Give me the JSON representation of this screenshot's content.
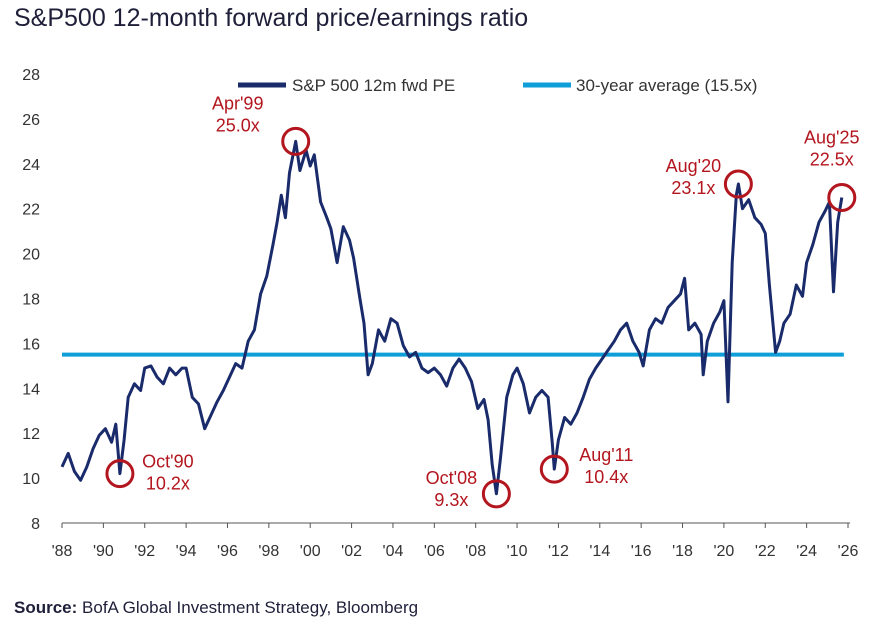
{
  "title": "S&P500 12-month forward price/earnings ratio",
  "source": {
    "label": "Source:",
    "text": " BofA Global Investment Strategy, Bloomberg"
  },
  "colors": {
    "pe_line": "#1a2b6b",
    "average_line": "#0e9fd8",
    "annotation": "#b3161e"
  },
  "chart_data": {
    "type": "line",
    "title": "S&P500 12-month forward price/earnings ratio",
    "xlabel": "",
    "ylabel": "",
    "xlim": [
      1988,
      2026
    ],
    "ylim": [
      8,
      28
    ],
    "y_ticks": [
      8,
      10,
      12,
      14,
      16,
      18,
      20,
      22,
      24,
      26,
      28
    ],
    "x_ticks": [
      {
        "value": 1988,
        "label": "'88"
      },
      {
        "value": 1990,
        "label": "'90"
      },
      {
        "value": 1992,
        "label": "'92"
      },
      {
        "value": 1994,
        "label": "'94"
      },
      {
        "value": 1996,
        "label": "'96"
      },
      {
        "value": 1998,
        "label": "'98"
      },
      {
        "value": 2000,
        "label": "'00"
      },
      {
        "value": 2002,
        "label": "'02"
      },
      {
        "value": 2004,
        "label": "'04"
      },
      {
        "value": 2006,
        "label": "'06"
      },
      {
        "value": 2008,
        "label": "'08"
      },
      {
        "value": 2010,
        "label": "'10"
      },
      {
        "value": 2012,
        "label": "'12"
      },
      {
        "value": 2014,
        "label": "'14"
      },
      {
        "value": 2016,
        "label": "'16"
      },
      {
        "value": 2018,
        "label": "'18"
      },
      {
        "value": 2020,
        "label": "'20"
      },
      {
        "value": 2022,
        "label": "'22"
      },
      {
        "value": 2024,
        "label": "'24"
      },
      {
        "value": 2026,
        "label": "'26"
      }
    ],
    "legend_position": "top",
    "series": [
      {
        "name": "S&P 500 12m fwd PE",
        "points": [
          [
            1988.0,
            10.5
          ],
          [
            1988.3,
            11.1
          ],
          [
            1988.6,
            10.3
          ],
          [
            1988.9,
            9.9
          ],
          [
            1989.2,
            10.5
          ],
          [
            1989.5,
            11.3
          ],
          [
            1989.8,
            11.9
          ],
          [
            1990.1,
            12.2
          ],
          [
            1990.4,
            11.6
          ],
          [
            1990.6,
            12.4
          ],
          [
            1990.8,
            10.2
          ],
          [
            1991.0,
            11.7
          ],
          [
            1991.2,
            13.6
          ],
          [
            1991.5,
            14.2
          ],
          [
            1991.8,
            13.9
          ],
          [
            1992.0,
            14.9
          ],
          [
            1992.3,
            15.0
          ],
          [
            1992.6,
            14.5
          ],
          [
            1992.9,
            14.2
          ],
          [
            1993.2,
            14.9
          ],
          [
            1993.5,
            14.6
          ],
          [
            1993.8,
            14.9
          ],
          [
            1994.0,
            14.9
          ],
          [
            1994.3,
            13.6
          ],
          [
            1994.6,
            13.3
          ],
          [
            1994.9,
            12.2
          ],
          [
            1995.2,
            12.8
          ],
          [
            1995.5,
            13.4
          ],
          [
            1995.8,
            13.9
          ],
          [
            1996.1,
            14.5
          ],
          [
            1996.4,
            15.1
          ],
          [
            1996.7,
            14.9
          ],
          [
            1997.0,
            16.1
          ],
          [
            1997.3,
            16.6
          ],
          [
            1997.6,
            18.2
          ],
          [
            1997.9,
            19.0
          ],
          [
            1998.2,
            20.4
          ],
          [
            1998.4,
            21.4
          ],
          [
            1998.6,
            22.6
          ],
          [
            1998.8,
            21.6
          ],
          [
            1999.0,
            23.6
          ],
          [
            1999.3,
            25.0
          ],
          [
            1999.5,
            23.7
          ],
          [
            1999.8,
            24.6
          ],
          [
            2000.0,
            23.9
          ],
          [
            2000.2,
            24.4
          ],
          [
            2000.5,
            22.3
          ],
          [
            2000.8,
            21.6
          ],
          [
            2001.0,
            21.1
          ],
          [
            2001.3,
            19.6
          ],
          [
            2001.6,
            21.2
          ],
          [
            2001.9,
            20.6
          ],
          [
            2002.1,
            19.8
          ],
          [
            2002.4,
            18.0
          ],
          [
            2002.6,
            16.9
          ],
          [
            2002.8,
            14.6
          ],
          [
            2003.0,
            15.1
          ],
          [
            2003.3,
            16.6
          ],
          [
            2003.6,
            16.1
          ],
          [
            2003.9,
            17.1
          ],
          [
            2004.2,
            16.9
          ],
          [
            2004.5,
            15.9
          ],
          [
            2004.8,
            15.4
          ],
          [
            2005.1,
            15.6
          ],
          [
            2005.4,
            14.9
          ],
          [
            2005.7,
            14.7
          ],
          [
            2006.0,
            14.9
          ],
          [
            2006.3,
            14.6
          ],
          [
            2006.6,
            14.1
          ],
          [
            2006.9,
            14.9
          ],
          [
            2007.2,
            15.3
          ],
          [
            2007.5,
            14.9
          ],
          [
            2007.8,
            14.3
          ],
          [
            2008.1,
            13.1
          ],
          [
            2008.4,
            13.5
          ],
          [
            2008.6,
            12.6
          ],
          [
            2008.8,
            10.6
          ],
          [
            2009.0,
            9.3
          ],
          [
            2009.2,
            10.9
          ],
          [
            2009.5,
            13.6
          ],
          [
            2009.8,
            14.6
          ],
          [
            2010.0,
            14.9
          ],
          [
            2010.3,
            14.2
          ],
          [
            2010.6,
            12.9
          ],
          [
            2010.9,
            13.6
          ],
          [
            2011.2,
            13.9
          ],
          [
            2011.5,
            13.6
          ],
          [
            2011.7,
            11.6
          ],
          [
            2011.8,
            10.4
          ],
          [
            2012.0,
            11.7
          ],
          [
            2012.3,
            12.7
          ],
          [
            2012.6,
            12.4
          ],
          [
            2012.9,
            12.9
          ],
          [
            2013.2,
            13.6
          ],
          [
            2013.5,
            14.4
          ],
          [
            2013.8,
            14.9
          ],
          [
            2014.1,
            15.3
          ],
          [
            2014.4,
            15.7
          ],
          [
            2014.7,
            16.1
          ],
          [
            2015.0,
            16.6
          ],
          [
            2015.3,
            16.9
          ],
          [
            2015.6,
            16.1
          ],
          [
            2015.9,
            15.6
          ],
          [
            2016.1,
            15.0
          ],
          [
            2016.4,
            16.6
          ],
          [
            2016.7,
            17.1
          ],
          [
            2017.0,
            16.9
          ],
          [
            2017.3,
            17.6
          ],
          [
            2017.6,
            17.9
          ],
          [
            2017.9,
            18.2
          ],
          [
            2018.1,
            18.9
          ],
          [
            2018.3,
            16.6
          ],
          [
            2018.6,
            16.9
          ],
          [
            2018.9,
            16.4
          ],
          [
            2019.0,
            14.6
          ],
          [
            2019.2,
            16.1
          ],
          [
            2019.5,
            16.9
          ],
          [
            2019.8,
            17.4
          ],
          [
            2020.0,
            17.9
          ],
          [
            2020.2,
            13.4
          ],
          [
            2020.4,
            19.6
          ],
          [
            2020.6,
            22.6
          ],
          [
            2020.7,
            23.1
          ],
          [
            2020.9,
            22.0
          ],
          [
            2021.2,
            22.4
          ],
          [
            2021.5,
            21.6
          ],
          [
            2021.8,
            21.3
          ],
          [
            2022.0,
            20.9
          ],
          [
            2022.2,
            18.6
          ],
          [
            2022.5,
            15.6
          ],
          [
            2022.7,
            16.1
          ],
          [
            2022.9,
            16.9
          ],
          [
            2023.2,
            17.3
          ],
          [
            2023.5,
            18.6
          ],
          [
            2023.8,
            18.1
          ],
          [
            2024.0,
            19.6
          ],
          [
            2024.3,
            20.4
          ],
          [
            2024.6,
            21.4
          ],
          [
            2024.9,
            21.9
          ],
          [
            2025.1,
            22.3
          ],
          [
            2025.3,
            18.3
          ],
          [
            2025.5,
            21.4
          ],
          [
            2025.7,
            22.5
          ]
        ]
      },
      {
        "name": "30-year average (15.5x)",
        "constant": 15.5
      }
    ],
    "annotations": [
      {
        "label": "Apr'99",
        "value_label": "25.0x",
        "x": 1999.3,
        "y": 25.0
      },
      {
        "label": "Oct'90",
        "value_label": "10.2x",
        "x": 1990.8,
        "y": 10.2
      },
      {
        "label": "Oct'08",
        "value_label": "9.3x",
        "x": 2009.0,
        "y": 9.3
      },
      {
        "label": "Aug'11",
        "value_label": "10.4x",
        "x": 2011.8,
        "y": 10.4
      },
      {
        "label": "Aug'20",
        "value_label": "23.1x",
        "x": 2020.7,
        "y": 23.1
      },
      {
        "label": "Aug'25",
        "value_label": "22.5x",
        "x": 2025.7,
        "y": 22.5
      }
    ]
  }
}
